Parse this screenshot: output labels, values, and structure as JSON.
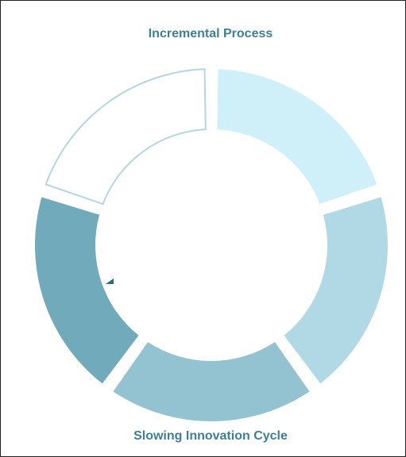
{
  "diagram": {
    "top_label": "Incremental Process",
    "bottom_label": "Slowing Innovation Cycle"
  }
}
